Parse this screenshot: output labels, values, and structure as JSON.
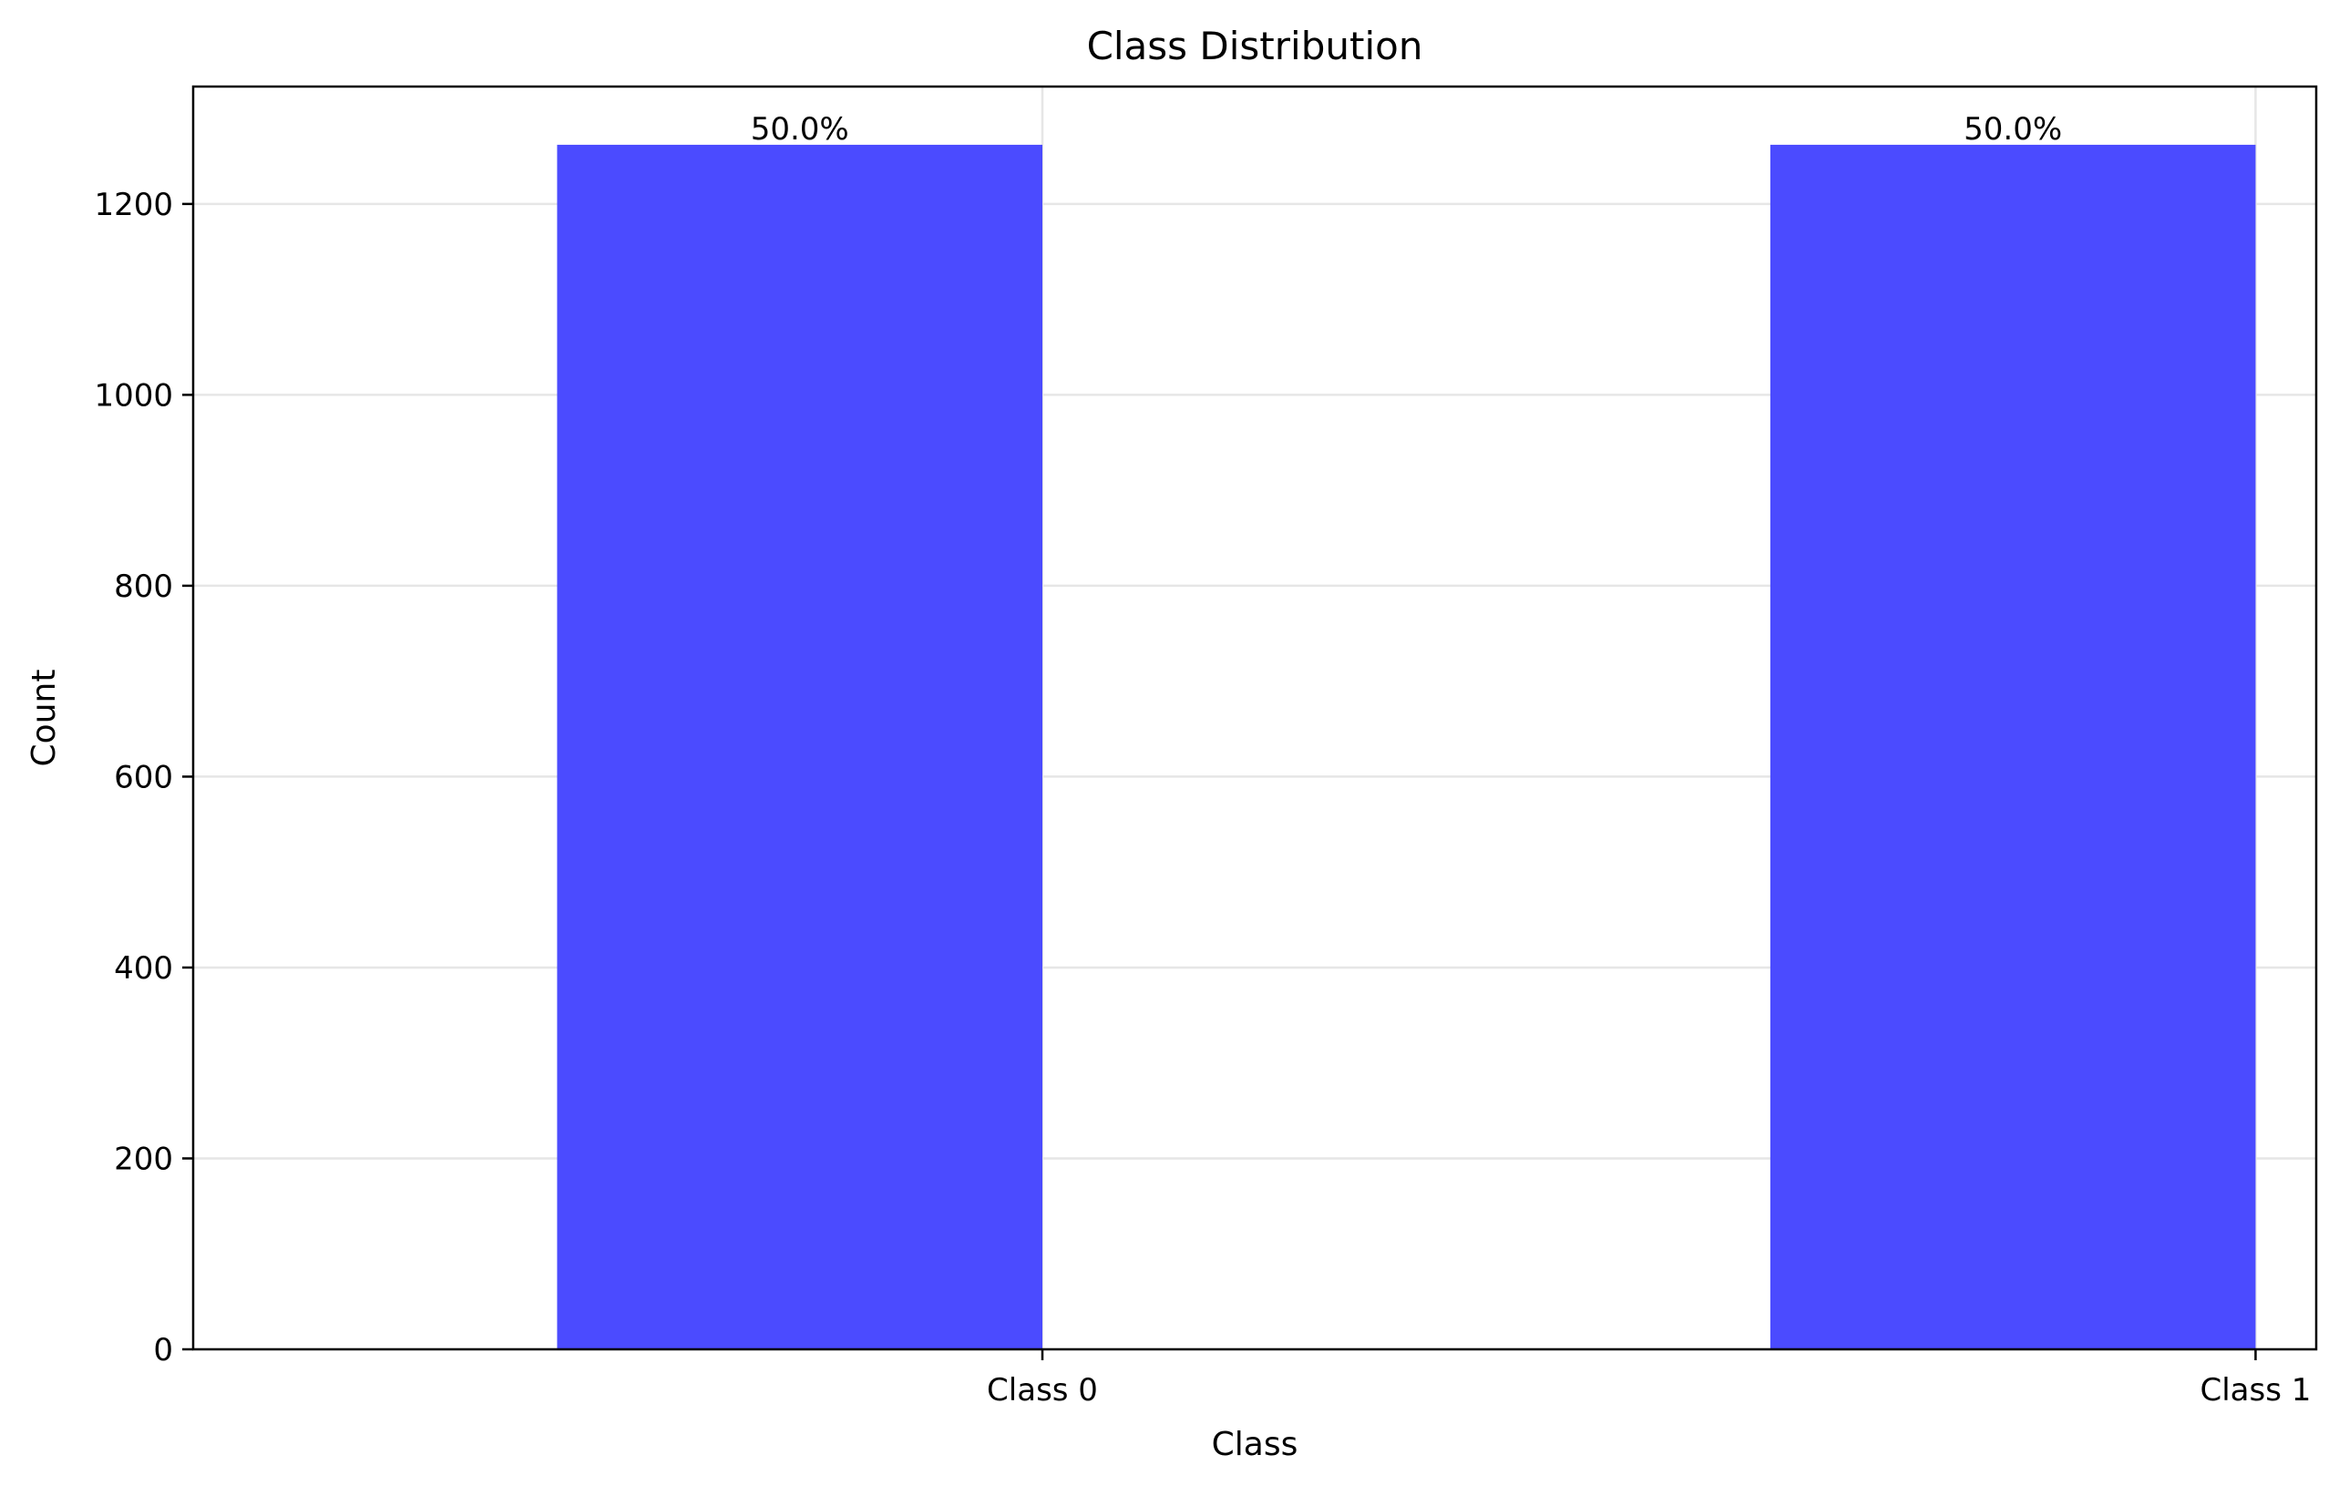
{
  "chart_data": {
    "type": "bar",
    "title": "Class Distribution",
    "xlabel": "Class",
    "ylabel": "Count",
    "categories": [
      "Class 0",
      "Class 1"
    ],
    "values": [
      1262,
      1262
    ],
    "data_labels": [
      "50.0%",
      "50.0%"
    ],
    "ylim": [
      0,
      1323
    ],
    "yticks": [
      0,
      200,
      400,
      600,
      800,
      1000,
      1200
    ],
    "grid": true,
    "bar_color": "#4b4bff",
    "legend": "none"
  }
}
